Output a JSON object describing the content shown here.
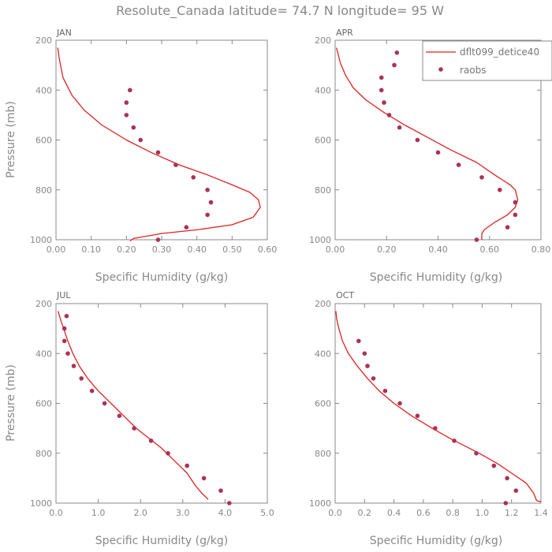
{
  "title": "Resolute_Canada  latitude= 74.7 N longitude= 95 W",
  "colors": {
    "model": "#dd2222",
    "obs": "#aa3355",
    "axis": "#888888",
    "text": "#888888"
  },
  "legend": {
    "model_label": "dflt099_detice40",
    "obs_label": "raobs"
  },
  "chart_data": [
    {
      "type": "line",
      "panel": "JAN",
      "xlabel": "Specific Humidity (g/kg)",
      "ylabel": "Pressure (mb)",
      "xlim": [
        0,
        0.6
      ],
      "ylim": [
        1000,
        200
      ],
      "xticks": [
        "0.00",
        "0.10",
        "0.20",
        "0.30",
        "0.40",
        "0.50",
        "0.60"
      ],
      "yticks": [
        "200",
        "400",
        "600",
        "800",
        "1000"
      ],
      "series": [
        {
          "name": "dflt099_detice40",
          "style": "line",
          "x": [
            0.21,
            0.22,
            0.3,
            0.4,
            0.5,
            0.56,
            0.58,
            0.575,
            0.55,
            0.5,
            0.43,
            0.35,
            0.27,
            0.2,
            0.13,
            0.08,
            0.045,
            0.02,
            0.01,
            0.005
          ],
          "y": [
            1005,
            995,
            975,
            960,
            940,
            910,
            870,
            840,
            810,
            780,
            740,
            700,
            650,
            600,
            540,
            480,
            420,
            350,
            280,
            230
          ]
        },
        {
          "name": "raobs",
          "style": "dots",
          "x": [
            0.29,
            0.37,
            0.43,
            0.44,
            0.43,
            0.39,
            0.34,
            0.29,
            0.24,
            0.22,
            0.2,
            0.2,
            0.21
          ],
          "y": [
            1000,
            950,
            900,
            850,
            800,
            750,
            700,
            650,
            600,
            550,
            500,
            450,
            400
          ]
        }
      ]
    },
    {
      "type": "line",
      "panel": "APR",
      "xlabel": "Specific Humidity (g/kg)",
      "ylabel": "",
      "xlim": [
        0,
        0.8
      ],
      "ylim": [
        1000,
        200
      ],
      "xticks": [
        "0.00",
        "0.20",
        "0.40",
        "0.60",
        "0.80"
      ],
      "yticks": [
        "200",
        "400",
        "600",
        "800",
        "1000"
      ],
      "series": [
        {
          "name": "dflt099_detice40",
          "style": "line",
          "x": [
            0.57,
            0.57,
            0.58,
            0.62,
            0.67,
            0.7,
            0.71,
            0.7,
            0.68,
            0.62,
            0.55,
            0.45,
            0.36,
            0.27,
            0.19,
            0.12,
            0.07,
            0.04,
            0.02,
            0.01,
            0.005
          ],
          "y": [
            1000,
            975,
            960,
            930,
            900,
            870,
            840,
            800,
            780,
            740,
            690,
            640,
            590,
            540,
            490,
            440,
            390,
            340,
            290,
            250,
            230
          ]
        },
        {
          "name": "raobs",
          "style": "dots",
          "x": [
            0.55,
            0.67,
            0.7,
            0.7,
            0.64,
            0.57,
            0.48,
            0.4,
            0.32,
            0.25,
            0.21,
            0.19,
            0.18,
            0.18,
            0.23,
            0.24
          ],
          "y": [
            1000,
            950,
            900,
            850,
            800,
            750,
            700,
            650,
            600,
            550,
            500,
            450,
            400,
            350,
            300,
            250
          ]
        }
      ]
    },
    {
      "type": "line",
      "panel": "JUL",
      "xlabel": "Specific Humidity (g/kg)",
      "ylabel": "Pressure (mb)",
      "xlim": [
        0,
        5.0
      ],
      "ylim": [
        1000,
        200
      ],
      "xticks": [
        "0.0",
        "1.0",
        "2.0",
        "3.0",
        "4.0",
        "5.0"
      ],
      "yticks": [
        "200",
        "400",
        "600",
        "800",
        "1000"
      ],
      "series": [
        {
          "name": "dflt099_detice40",
          "style": "line",
          "x": [
            3.6,
            3.45,
            3.3,
            3.1,
            2.8,
            2.5,
            2.2,
            1.9,
            1.6,
            1.3,
            1.0,
            0.75,
            0.55,
            0.4,
            0.28,
            0.18,
            0.1,
            0.05
          ],
          "y": [
            985,
            960,
            930,
            880,
            830,
            780,
            740,
            700,
            650,
            600,
            550,
            500,
            450,
            400,
            350,
            300,
            260,
            230
          ]
        },
        {
          "name": "raobs",
          "style": "dots",
          "x": [
            4.1,
            3.9,
            3.5,
            3.1,
            2.65,
            2.25,
            1.85,
            1.5,
            1.15,
            0.85,
            0.6,
            0.42,
            0.28,
            0.2,
            0.2,
            0.25
          ],
          "y": [
            1000,
            950,
            900,
            850,
            800,
            750,
            700,
            650,
            600,
            550,
            500,
            450,
            400,
            350,
            300,
            250
          ]
        }
      ]
    },
    {
      "type": "line",
      "panel": "OCT",
      "xlabel": "Specific Humidity (g/kg)",
      "ylabel": "",
      "xlim": [
        0,
        1.4
      ],
      "ylim": [
        1000,
        200
      ],
      "xticks": [
        "0.0",
        "0.2",
        "0.4",
        "0.6",
        "0.8",
        "1.0",
        "1.2",
        "1.4"
      ],
      "yticks": [
        "200",
        "400",
        "600",
        "800",
        "1000"
      ],
      "series": [
        {
          "name": "dflt099_detice40",
          "style": "line",
          "x": [
            1.4,
            1.37,
            1.35,
            1.3,
            1.2,
            1.1,
            0.98,
            0.88,
            0.78,
            0.66,
            0.52,
            0.4,
            0.3,
            0.22,
            0.15,
            0.09,
            0.05,
            0.025,
            0.01,
            0.005
          ],
          "y": [
            995,
            990,
            960,
            920,
            880,
            840,
            800,
            770,
            740,
            700,
            650,
            600,
            550,
            500,
            450,
            400,
            350,
            300,
            260,
            230
          ]
        },
        {
          "name": "raobs",
          "style": "dots",
          "x": [
            1.16,
            1.23,
            1.17,
            1.08,
            0.96,
            0.81,
            0.68,
            0.56,
            0.44,
            0.34,
            0.26,
            0.22,
            0.2,
            0.16
          ],
          "y": [
            1000,
            950,
            900,
            850,
            800,
            750,
            700,
            650,
            600,
            550,
            500,
            450,
            400,
            350
          ]
        }
      ]
    }
  ]
}
